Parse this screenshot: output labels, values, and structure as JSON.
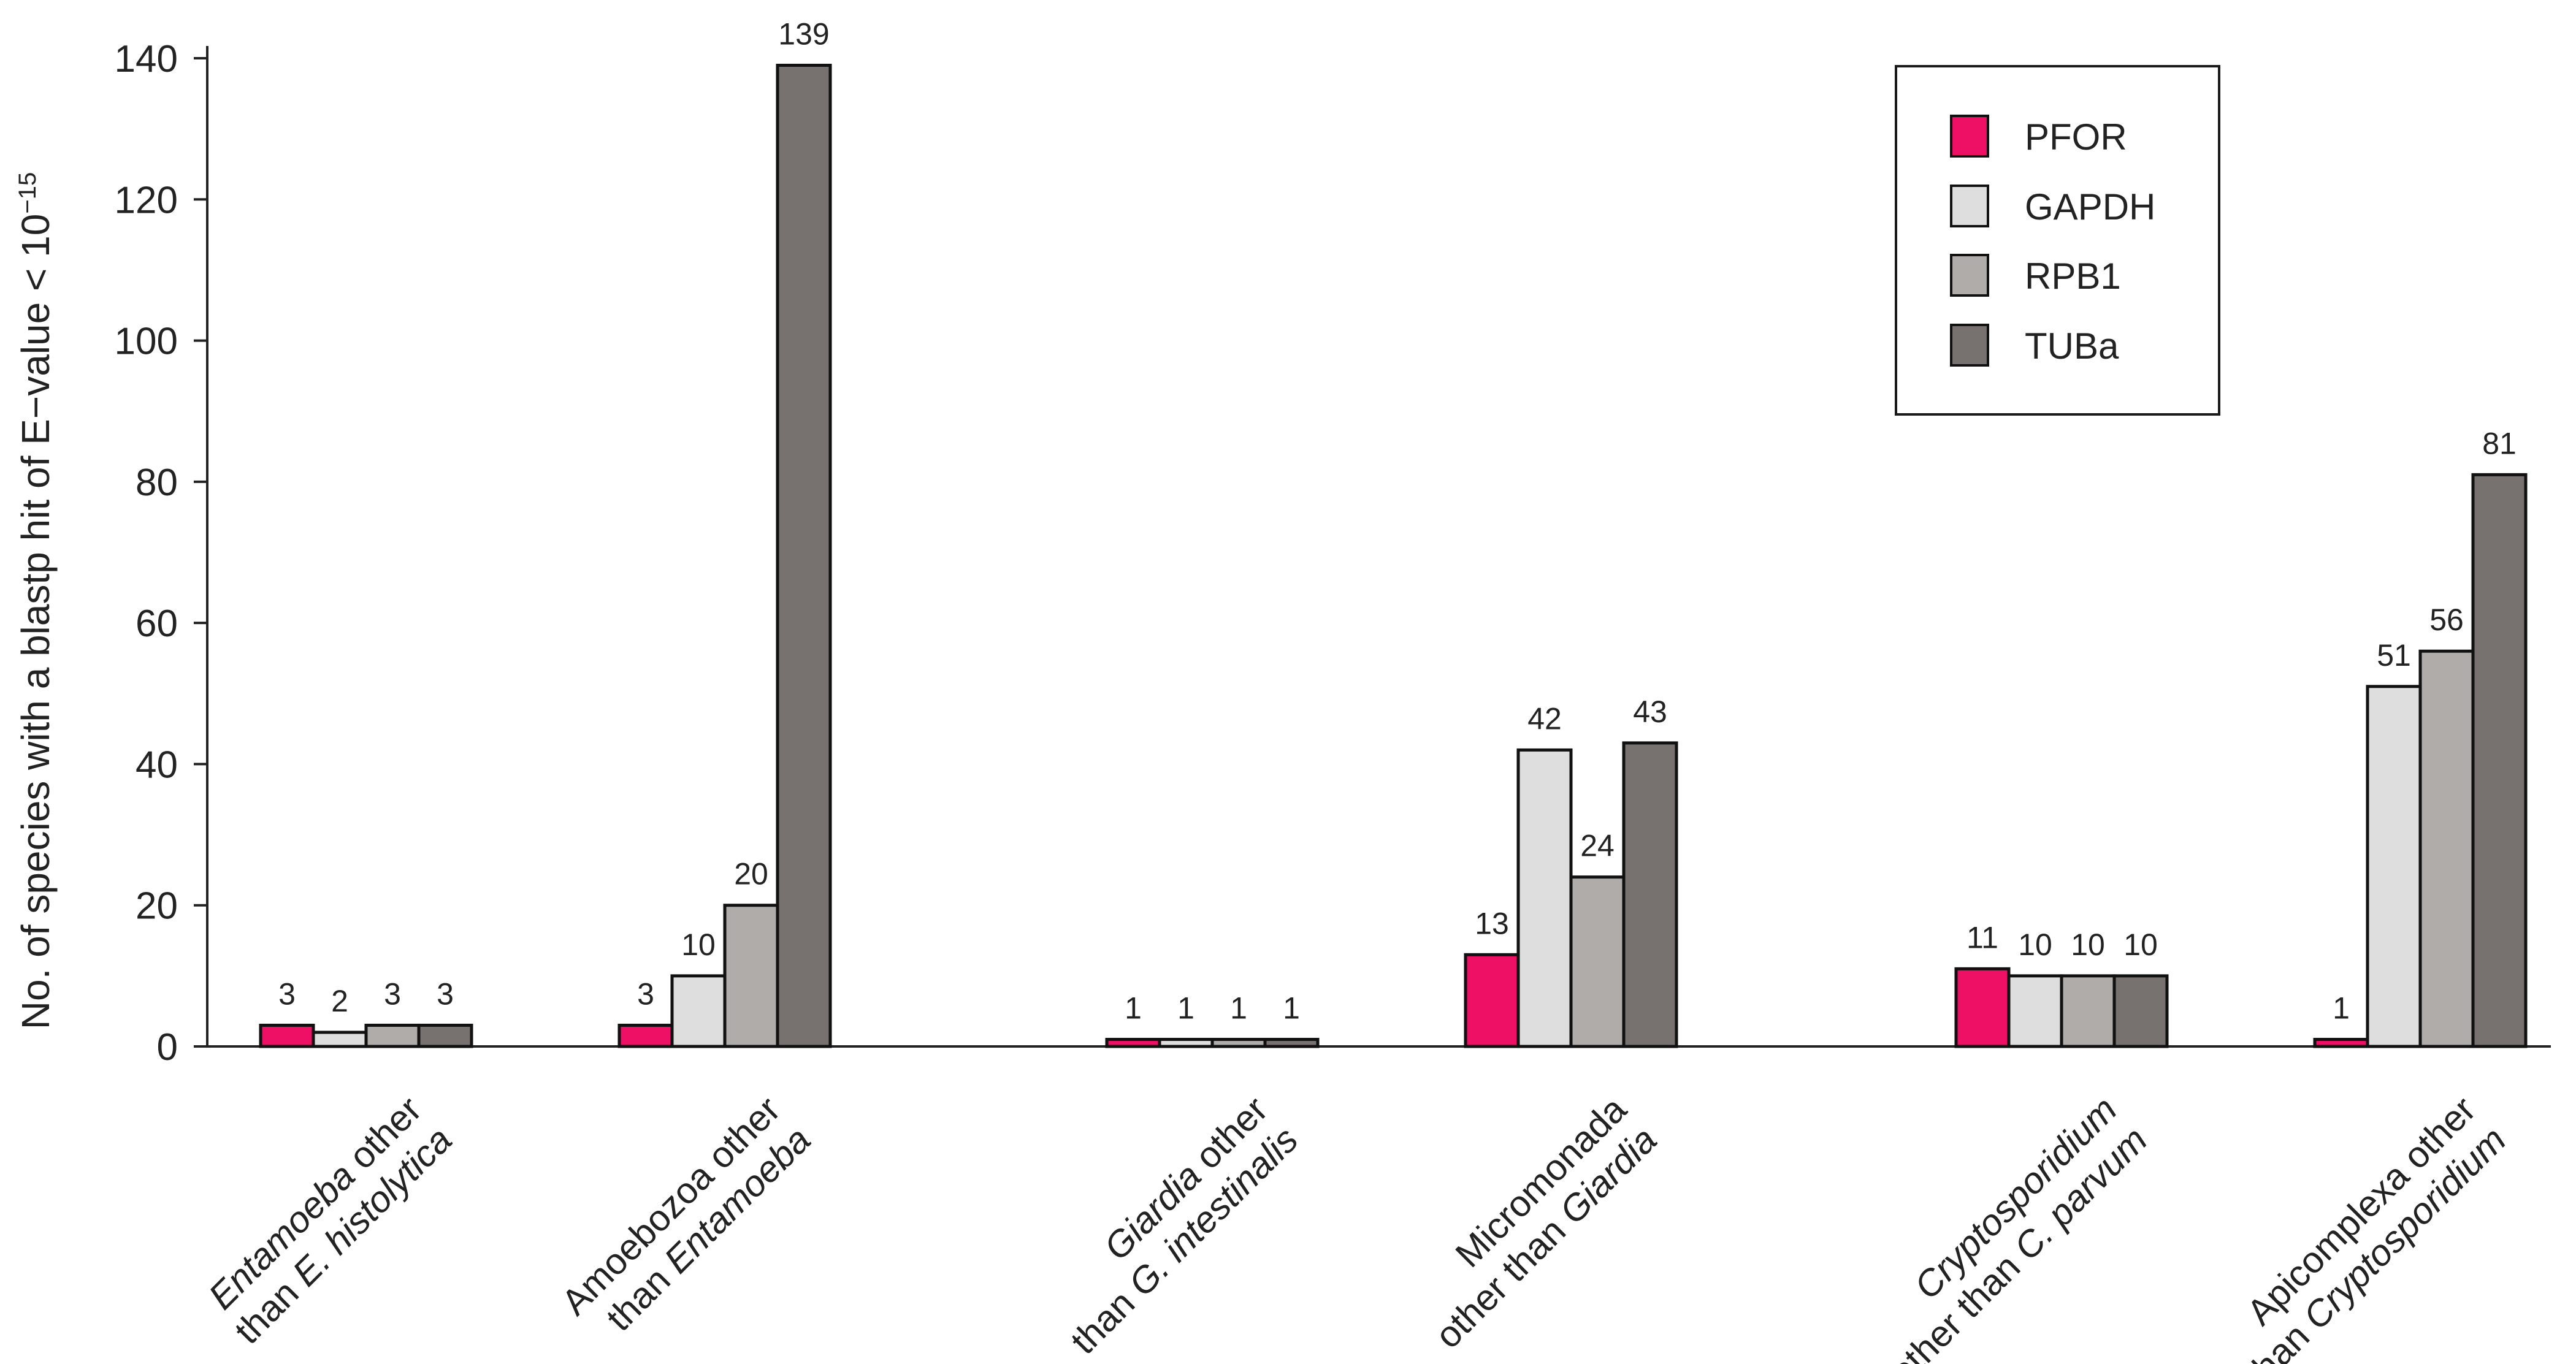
{
  "chart_data": {
    "type": "bar",
    "ylabel": "No. of species with a blastp hit of E−value < 10",
    "ylabel_sup": "−15",
    "ylim": [
      0,
      140
    ],
    "yticks": [
      "0",
      "20",
      "40",
      "60",
      "80",
      "100",
      "120",
      "140"
    ],
    "grid": false,
    "legend_position": "top-right",
    "colors": {
      "PFOR": "#ee1065",
      "GAPDH": "#dedede",
      "RPB1": "#b0acaa",
      "TUBa": "#777170"
    },
    "categories": [
      {
        "lines": [
          [
            {
              "t": "Entamoeba",
              "i": true
            },
            {
              "t": " other",
              "i": false
            }
          ],
          [
            {
              "t": "than ",
              "i": false
            },
            {
              "t": "E. histolytica",
              "i": true
            }
          ]
        ]
      },
      {
        "lines": [
          [
            {
              "t": "Amoebozoa other",
              "i": false
            }
          ],
          [
            {
              "t": "than ",
              "i": false
            },
            {
              "t": "Entamoeba",
              "i": true
            }
          ]
        ]
      },
      {
        "lines": [
          [
            {
              "t": "Giardia",
              "i": true
            },
            {
              "t": " other",
              "i": false
            }
          ],
          [
            {
              "t": "than ",
              "i": false
            },
            {
              "t": "G. intestinalis",
              "i": true
            }
          ]
        ]
      },
      {
        "lines": [
          [
            {
              "t": "Micromonada",
              "i": false
            }
          ],
          [
            {
              "t": "other than ",
              "i": false
            },
            {
              "t": "Giardia",
              "i": true
            }
          ]
        ]
      },
      {
        "lines": [
          [
            {
              "t": "Cryptosporidium",
              "i": true
            }
          ],
          [
            {
              "t": "other than ",
              "i": false
            },
            {
              "t": "C. parvum",
              "i": true
            }
          ]
        ]
      },
      {
        "lines": [
          [
            {
              "t": "Apicomplexa other",
              "i": false
            }
          ],
          [
            {
              "t": "than ",
              "i": false
            },
            {
              "t": "Cryptosporidium",
              "i": true
            }
          ]
        ]
      }
    ],
    "series": [
      {
        "name": "PFOR",
        "values": [
          3,
          3,
          1,
          13,
          11,
          1
        ]
      },
      {
        "name": "GAPDH",
        "values": [
          2,
          10,
          1,
          42,
          10,
          51
        ]
      },
      {
        "name": "RPB1",
        "values": [
          3,
          20,
          1,
          24,
          10,
          56
        ]
      },
      {
        "name": "TUBa",
        "values": [
          3,
          139,
          1,
          43,
          10,
          81
        ]
      }
    ]
  }
}
